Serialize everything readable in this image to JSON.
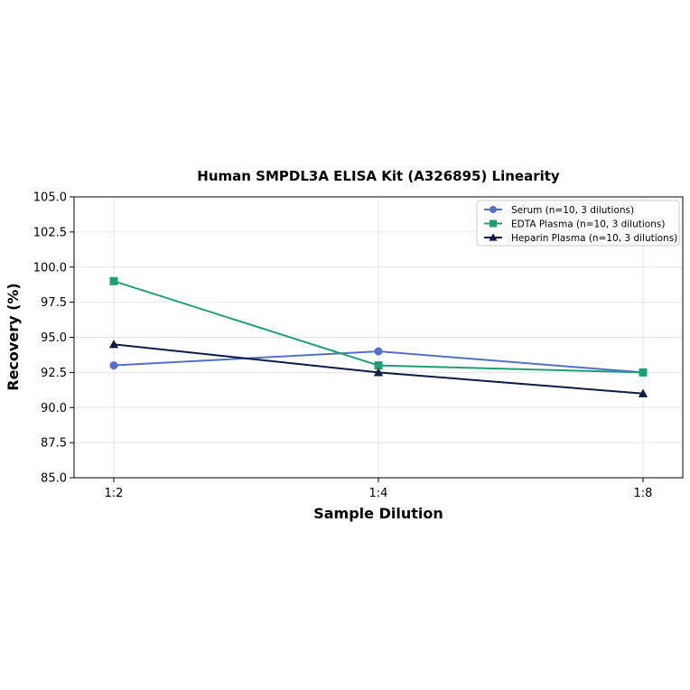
{
  "chart_data": {
    "type": "line",
    "title": "Human SMPDL3A ELISA Kit (A326895) Linearity",
    "xlabel": "Sample Dilution",
    "ylabel": "Recovery (%)",
    "categories": [
      "1:2",
      "1:4",
      "1:8"
    ],
    "ylim": [
      85.0,
      105.0
    ],
    "yticks": [
      "85.0",
      "87.5",
      "90.0",
      "92.5",
      "95.0",
      "97.5",
      "100.0",
      "102.5",
      "105.0"
    ],
    "grid": true,
    "legend_position": "top-right",
    "series": [
      {
        "name": "Serum (n=10, 3 dilutions)",
        "values": [
          93.0,
          94.0,
          92.5
        ],
        "color": "#5470c6",
        "marker": "circle"
      },
      {
        "name": "EDTA Plasma (n=10, 3 dilutions)",
        "values": [
          99.0,
          93.0,
          92.5
        ],
        "color": "#1f9e76",
        "marker": "square"
      },
      {
        "name": "Heparin Plasma (n=10, 3 dilutions)",
        "values": [
          94.5,
          92.5,
          91.0
        ],
        "color": "#0b1b45",
        "marker": "triangle"
      }
    ]
  }
}
